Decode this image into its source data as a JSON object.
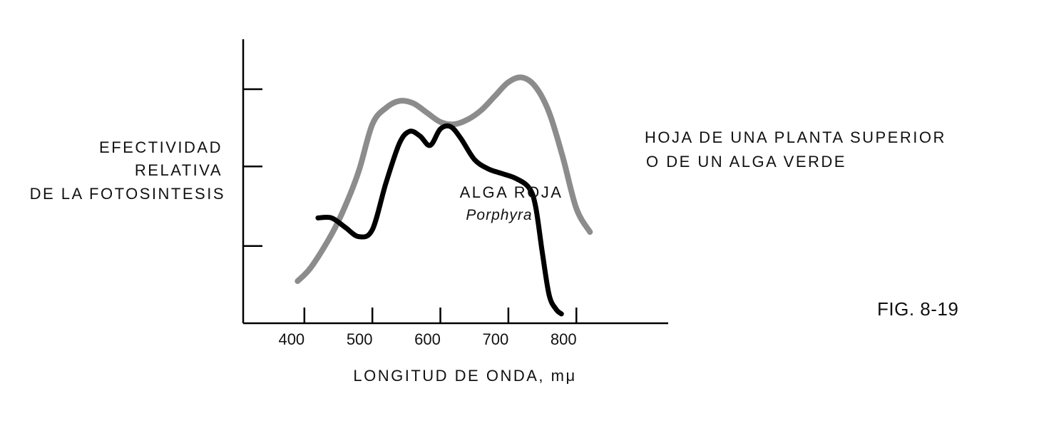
{
  "chart_data": {
    "type": "line",
    "title": "",
    "xlabel": "LONGITUD DE ONDA, mμ",
    "ylabel_lines": [
      "EFECTIVIDAD",
      "RELATIVA",
      "DE LA FOTOSINTESIS"
    ],
    "xlim": [
      310,
      935
    ],
    "ylim": [
      0,
      1.0
    ],
    "x_ticks": [
      400,
      500,
      600,
      700,
      800
    ],
    "x_tick_labels": [
      "400",
      "500",
      "600",
      "700",
      "800"
    ],
    "y_ticks": [
      0.33,
      0.67,
      1.0
    ],
    "grid": false,
    "series": [
      {
        "name": "HOJA DE UNA PLANTA SUPERIOR O DE UN ALGA VERDE",
        "label_lines": [
          "HOJA DE UNA PLANTA SUPERIOR",
          "O DE UN ALGA VERDE"
        ],
        "color": "#8c8c8c",
        "x": [
          390,
          410,
          440,
          460,
          480,
          500,
          520,
          540,
          560,
          580,
          600,
          620,
          640,
          660,
          680,
          700,
          720,
          740,
          760,
          780,
          800,
          820
        ],
        "y": [
          0.18,
          0.24,
          0.38,
          0.5,
          0.65,
          0.85,
          0.92,
          0.95,
          0.94,
          0.9,
          0.86,
          0.85,
          0.87,
          0.91,
          0.97,
          1.03,
          1.05,
          1.01,
          0.9,
          0.71,
          0.49,
          0.39
        ]
      },
      {
        "name": "ALGA ROJA",
        "sublabel": "Porphyra",
        "color": "#000000",
        "x": [
          420,
          440,
          460,
          480,
          500,
          520,
          540,
          555,
          570,
          585,
          600,
          615,
          630,
          650,
          670,
          690,
          710,
          730,
          740,
          750,
          760,
          770,
          778
        ],
        "y": [
          0.45,
          0.45,
          0.41,
          0.37,
          0.4,
          0.6,
          0.77,
          0.82,
          0.8,
          0.76,
          0.83,
          0.84,
          0.79,
          0.7,
          0.66,
          0.64,
          0.62,
          0.58,
          0.5,
          0.3,
          0.12,
          0.06,
          0.04
        ]
      }
    ],
    "annotations": [
      "FIG. 8-19"
    ]
  }
}
